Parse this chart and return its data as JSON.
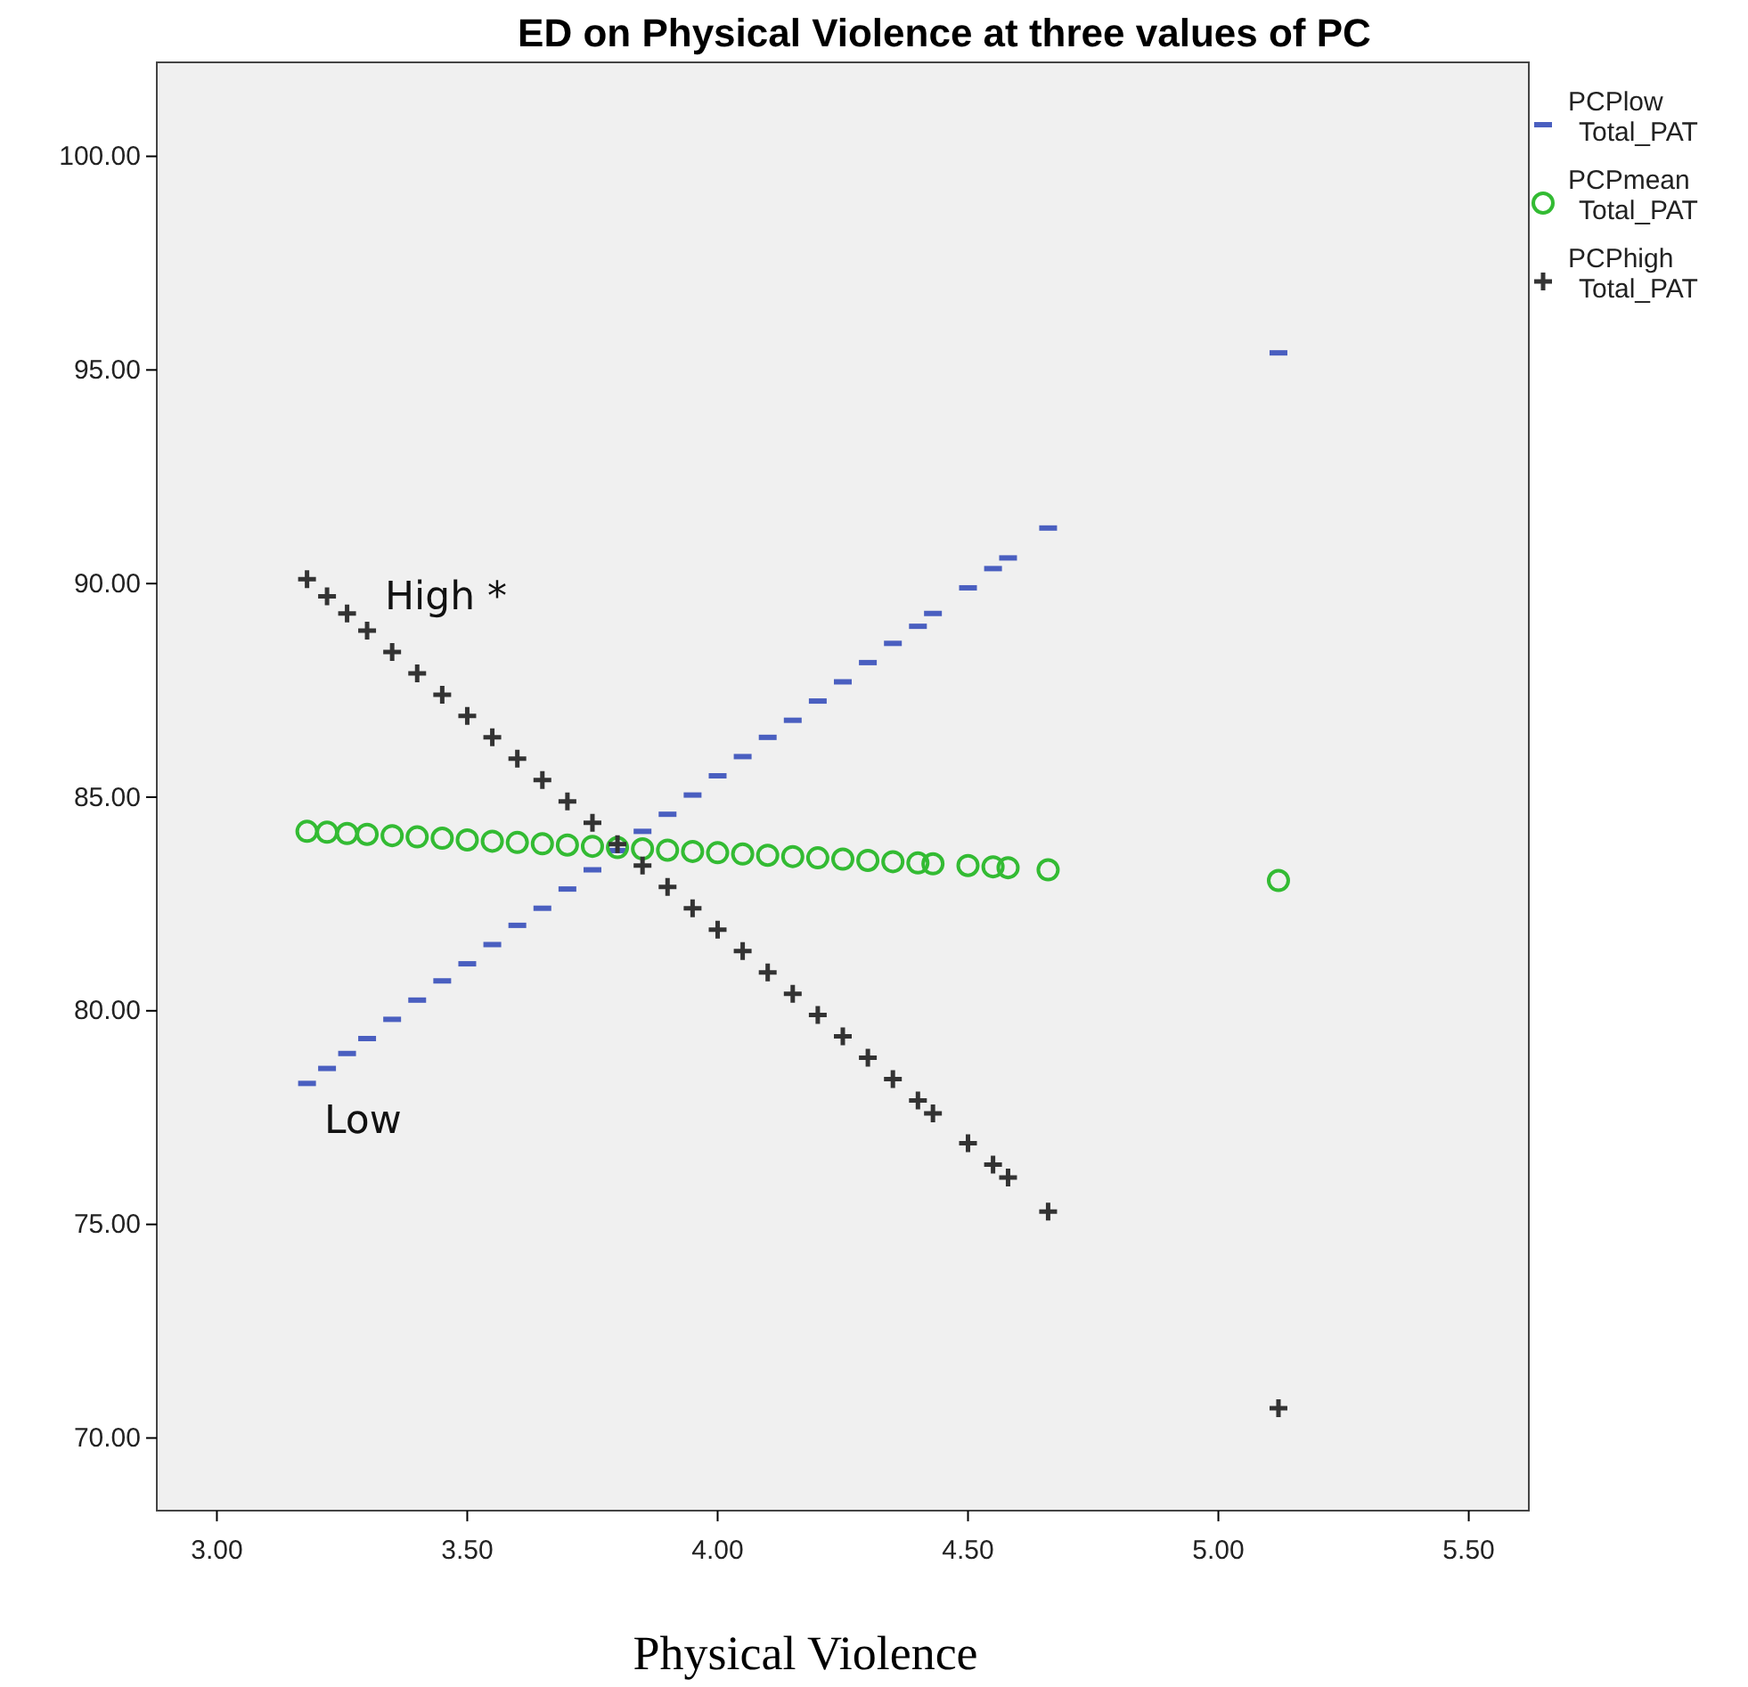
{
  "chart_data": {
    "type": "scatter",
    "title": "ED on Physical Violence at three values of PC",
    "xlabel": "Physical Violence",
    "x": [
      3.18,
      3.22,
      3.26,
      3.3,
      3.35,
      3.4,
      3.45,
      3.5,
      3.55,
      3.6,
      3.65,
      3.7,
      3.75,
      3.8,
      3.85,
      3.9,
      3.95,
      4.0,
      4.05,
      4.1,
      4.15,
      4.2,
      4.25,
      4.3,
      4.35,
      4.4,
      4.43,
      4.5,
      4.55,
      4.58,
      4.66,
      5.12
    ],
    "series": [
      {
        "name": "PCPlow Total_PAT",
        "color": "#4a5fc0",
        "values": [
          78.3,
          78.65,
          79.0,
          79.35,
          79.8,
          80.25,
          80.7,
          81.1,
          81.55,
          82.0,
          82.4,
          82.85,
          83.3,
          83.75,
          84.2,
          84.6,
          85.05,
          85.5,
          85.95,
          86.4,
          86.8,
          87.25,
          87.7,
          88.15,
          88.6,
          89.0,
          89.3,
          89.9,
          90.35,
          90.6,
          91.3,
          95.4
        ]
      },
      {
        "name": "PCPmean Total_PAT",
        "color": "#33bb33",
        "marker": "circle",
        "values": [
          84.2,
          84.18,
          84.15,
          84.13,
          84.1,
          84.07,
          84.04,
          84.0,
          83.97,
          83.94,
          83.91,
          83.88,
          83.85,
          83.82,
          83.79,
          83.76,
          83.73,
          83.7,
          83.67,
          83.64,
          83.61,
          83.58,
          83.55,
          83.52,
          83.49,
          83.46,
          83.44,
          83.4,
          83.37,
          83.35,
          83.3,
          83.05
        ]
      },
      {
        "name": "PCPhigh Total_PAT",
        "color": "#333333",
        "marker": "cross",
        "values": [
          90.1,
          89.7,
          89.3,
          88.9,
          88.4,
          87.9,
          87.4,
          86.9,
          86.4,
          85.9,
          85.4,
          84.9,
          84.4,
          83.9,
          83.4,
          82.9,
          82.4,
          81.9,
          81.4,
          80.9,
          80.4,
          79.9,
          79.4,
          78.9,
          78.4,
          77.9,
          77.6,
          76.9,
          76.4,
          76.1,
          75.3,
          70.7
        ]
      }
    ],
    "xlim": [
      2.88,
      5.62
    ],
    "ylim": [
      68.3,
      102.2
    ],
    "xticks": [
      {
        "value": 3,
        "label": "3.00"
      },
      {
        "value": 3.5,
        "label": "3.50"
      },
      {
        "value": 4,
        "label": "4.00"
      },
      {
        "value": 4.5,
        "label": "4.50"
      },
      {
        "value": 5,
        "label": "5.00"
      },
      {
        "value": 5.5,
        "label": "5.50"
      }
    ],
    "yticks": [
      {
        "value": 70,
        "label": "70.00"
      },
      {
        "value": 75,
        "label": "75.00"
      },
      {
        "value": 80,
        "label": "80.00"
      },
      {
        "value": 85,
        "label": "85.00"
      },
      {
        "value": 90,
        "label": "90.00"
      },
      {
        "value": 95,
        "label": "95.00"
      },
      {
        "value": 100,
        "label": "100.00"
      }
    ],
    "annotations": [
      "High *",
      "Low"
    ],
    "grid": false,
    "legend": "top right"
  }
}
